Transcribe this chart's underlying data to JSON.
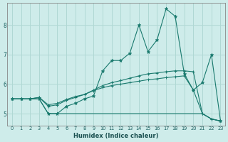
{
  "xlabel": "Humidex (Indice chaleur)",
  "x": [
    0,
    1,
    2,
    3,
    4,
    5,
    6,
    7,
    8,
    9,
    10,
    11,
    12,
    13,
    14,
    15,
    16,
    17,
    18,
    19,
    20,
    21,
    22,
    23
  ],
  "line1": [
    5.5,
    5.5,
    5.5,
    5.5,
    5.0,
    5.0,
    5.25,
    5.35,
    5.5,
    5.6,
    6.45,
    6.8,
    6.8,
    7.05,
    8.0,
    7.1,
    7.5,
    8.55,
    8.3,
    6.35,
    5.8,
    6.05,
    7.0,
    4.75
  ],
  "line2": [
    5.5,
    5.5,
    5.5,
    5.55,
    5.25,
    5.3,
    5.45,
    5.55,
    5.65,
    5.8,
    5.95,
    6.05,
    6.12,
    6.2,
    6.28,
    6.35,
    6.38,
    6.42,
    6.45,
    6.45,
    6.42,
    5.0,
    4.82,
    4.75
  ],
  "line3": [
    5.5,
    5.5,
    5.5,
    5.55,
    5.3,
    5.35,
    5.48,
    5.58,
    5.65,
    5.78,
    5.88,
    5.95,
    6.0,
    6.05,
    6.1,
    6.15,
    6.18,
    6.22,
    6.25,
    6.28,
    5.8,
    5.0,
    4.82,
    4.75
  ],
  "line4": [
    5.5,
    5.5,
    5.5,
    5.5,
    5.0,
    5.0,
    5.0,
    5.0,
    5.0,
    5.0,
    5.0,
    5.0,
    5.0,
    5.0,
    5.0,
    5.0,
    5.0,
    5.0,
    5.0,
    5.0,
    5.0,
    5.0,
    4.82,
    4.75
  ],
  "color": "#1a7a6e",
  "bg_color": "#ceecea",
  "grid_color": "#b0d8d4",
  "ylim": [
    4.6,
    8.75
  ],
  "xlim": [
    -0.5,
    23.5
  ],
  "yticks": [
    5,
    6,
    7,
    8
  ],
  "xticks": [
    0,
    1,
    2,
    3,
    4,
    5,
    6,
    7,
    8,
    9,
    10,
    11,
    12,
    13,
    14,
    15,
    16,
    17,
    18,
    19,
    20,
    21,
    22,
    23
  ]
}
